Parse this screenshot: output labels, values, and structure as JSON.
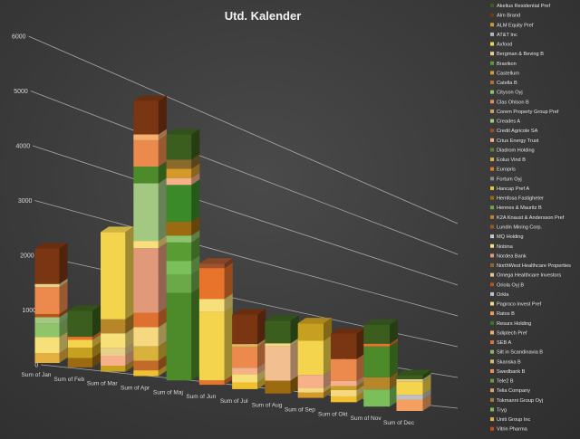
{
  "chart_data": {
    "type": "bar",
    "stacked": true,
    "three_d": true,
    "title": "Utd. Kalender",
    "categories": [
      "Sum of Jan",
      "Sum of Feb",
      "Sum of Mar",
      "Sum of Apr",
      "Sum of Maj",
      "Sum of Jun",
      "Sum of Jul",
      "Sum of Aug",
      "Sum of Sep",
      "Sum of Okt",
      "Sum of Nov",
      "Sum of Dec"
    ],
    "yticks": [
      "0",
      "1000",
      "2000",
      "3000",
      "4000",
      "5000",
      "6000"
    ],
    "ylim": [
      0,
      6000
    ],
    "grid": true,
    "legend_position": "right",
    "legend": [
      "Akelius Residential Pref",
      "Alm Brand",
      "ALM Equity Pref",
      "AT&T Inc",
      "Axfood",
      "Bergman & Beving B",
      "Bravikon",
      "Castellum",
      "Catella B",
      "Citycon Oyj",
      "Clas Ohlson B",
      "Corem Property Group Pref",
      "Creades A",
      "Credit Agricole SA",
      "Crius Energy Trust",
      "Diadrom Holding",
      "Eolus Vind B",
      "Europris",
      "Fortum Oyj",
      "Hancap Pref A",
      "Hemfosa Fastigheter",
      "Hennes & Mauritz B",
      "K2A Knaust & Andersson Pref",
      "Lundin Mining Corp.",
      "MQ Holding",
      "Nobina",
      "Nordea Bank",
      "NorthWest Healthcare Properties",
      "Omega Healthcare Investors",
      "Oriola Oyj B",
      "Orkla",
      "Pagroco Invest Pref",
      "Ratos B",
      "Resurs Holding",
      "Sdiptech Pref",
      "SEB A",
      "Silt in Scandinavia B",
      "Skanska B",
      "Swedbank B",
      "Tele2 B",
      "Telia Company",
      "Tokmanni Group Oyj",
      "Tryg",
      "Uniti Group Inc",
      "Vitrin Pharma"
    ],
    "series_colors": [
      "#3b5e1f",
      "#7a3612",
      "#c8a020",
      "#b5b5b5",
      "#f3d44c",
      "#e8cf8a",
      "#5a9c34",
      "#d49a2a",
      "#c26a2a",
      "#8fc46a",
      "#eb8a4c",
      "#c9a255",
      "#a2c882",
      "#a54a1c",
      "#f6b08a",
      "#4c8a2a",
      "#d8b23a",
      "#e8742c",
      "#8a8a8a",
      "#f0c030",
      "#9c6a10",
      "#6aa848",
      "#b8862a",
      "#a0522d",
      "#c8c8c8",
      "#f7e07a",
      "#e09a7a",
      "#8a6a2a",
      "#f2c090",
      "#b8541a",
      "#c0c0c0",
      "#f5d880",
      "#f0a040",
      "#2e7a2e",
      "#f5b070",
      "#e07030",
      "#8ab46a",
      "#d8c060",
      "#f09050",
      "#6a9a3a",
      "#e0a060",
      "#a08030",
      "#7abf5a",
      "#e6b040",
      "#c84a10"
    ],
    "stacks": [
      {
        "category": "Sum of Jan",
        "segments": [
          {
            "v": 180,
            "c": "#e6b040"
          },
          {
            "v": 300,
            "c": "#f7e07a"
          },
          {
            "v": 250,
            "c": "#8fc46a"
          },
          {
            "v": 120,
            "c": "#a2c882"
          },
          {
            "v": 60,
            "c": "#b8541a"
          },
          {
            "v": 500,
            "c": "#eb8a4c"
          },
          {
            "v": 60,
            "c": "#e8cf8a"
          },
          {
            "v": 660,
            "c": "#7a3612"
          }
        ]
      },
      {
        "category": "Sum of Feb",
        "segments": [
          {
            "v": 180,
            "c": "#9c6a10"
          },
          {
            "v": 200,
            "c": "#c8a020"
          },
          {
            "v": 150,
            "c": "#f3d44c"
          },
          {
            "v": 60,
            "c": "#e8742c"
          },
          {
            "v": 500,
            "c": "#3b5e1f"
          }
        ]
      },
      {
        "category": "Sum of Mar",
        "segments": [
          {
            "v": 120,
            "c": "#c8a020"
          },
          {
            "v": 200,
            "c": "#f6b08a"
          },
          {
            "v": 150,
            "c": "#e8cf8a"
          },
          {
            "v": 300,
            "c": "#f7e07a"
          },
          {
            "v": 280,
            "c": "#b8862a"
          },
          {
            "v": 1750,
            "c": "#f3d44c"
          }
        ]
      },
      {
        "category": "Sum of Apr",
        "segments": [
          {
            "v": 120,
            "c": "#f0c030"
          },
          {
            "v": 200,
            "c": "#c26a2a"
          },
          {
            "v": 300,
            "c": "#d8b23a"
          },
          {
            "v": 400,
            "c": "#f5d880"
          },
          {
            "v": 300,
            "c": "#e07030"
          },
          {
            "v": 1350,
            "c": "#e09a7a"
          },
          {
            "v": 150,
            "c": "#f7e07a"
          },
          {
            "v": 1200,
            "c": "#a2c882"
          },
          {
            "v": 350,
            "c": "#4c8a2a"
          },
          {
            "v": 550,
            "c": "#eb8a4c"
          },
          {
            "v": 120,
            "c": "#f5b070"
          },
          {
            "v": 700,
            "c": "#7a3612"
          }
        ]
      },
      {
        "category": "Sum of Maj",
        "segments": [
          {
            "v": 1900,
            "c": "#4c8a2a"
          },
          {
            "v": 400,
            "c": "#6aa848"
          },
          {
            "v": 300,
            "c": "#7abf5a"
          },
          {
            "v": 400,
            "c": "#5a9c34"
          },
          {
            "v": 150,
            "c": "#8fc46a"
          },
          {
            "v": 300,
            "c": "#9c6a10"
          },
          {
            "v": 800,
            "c": "#3b8a2a"
          },
          {
            "v": 150,
            "c": "#f6b08a"
          },
          {
            "v": 200,
            "c": "#d49a2a"
          },
          {
            "v": 200,
            "c": "#8a6a2a"
          },
          {
            "v": 550,
            "c": "#3b5e1f"
          }
        ]
      },
      {
        "category": "Sum of Jun",
        "segments": [
          {
            "v": 100,
            "c": "#e8742c"
          },
          {
            "v": 1550,
            "c": "#f3d44c"
          },
          {
            "v": 300,
            "c": "#f7e07a"
          },
          {
            "v": 700,
            "c": "#e8742c"
          },
          {
            "v": 100,
            "c": "#a0522d"
          }
        ]
      },
      {
        "category": "Sum of Jul",
        "segments": [
          {
            "v": 160,
            "c": "#f0c030"
          },
          {
            "v": 200,
            "c": "#f7e07a"
          },
          {
            "v": 150,
            "c": "#f6b08a"
          },
          {
            "v": 500,
            "c": "#eb8a4c"
          },
          {
            "v": 60,
            "c": "#d8c060"
          },
          {
            "v": 700,
            "c": "#7a3612"
          }
        ]
      },
      {
        "category": "Sum of Aug",
        "segments": [
          {
            "v": 320,
            "c": "#9c6a10"
          },
          {
            "v": 850,
            "c": "#f2c090"
          },
          {
            "v": 80,
            "c": "#f5d880"
          },
          {
            "v": 560,
            "c": "#3b5e1f"
          }
        ]
      },
      {
        "category": "Sum of Sep",
        "segments": [
          {
            "v": 140,
            "c": "#d49a2a"
          },
          {
            "v": 120,
            "c": "#f5d880"
          },
          {
            "v": 340,
            "c": "#f6b08a"
          },
          {
            "v": 900,
            "c": "#f3d44c"
          },
          {
            "v": 450,
            "c": "#c8a020"
          }
        ]
      },
      {
        "category": "Sum of Okt",
        "segments": [
          {
            "v": 160,
            "c": "#f0c030"
          },
          {
            "v": 180,
            "c": "#f5d880"
          },
          {
            "v": 100,
            "c": "#c8a020"
          },
          {
            "v": 150,
            "c": "#f6b08a"
          },
          {
            "v": 600,
            "c": "#eb8a4c"
          },
          {
            "v": 700,
            "c": "#7a3612"
          }
        ]
      },
      {
        "category": "Sum of Nov",
        "segments": [
          {
            "v": 500,
            "c": "#7abf5a"
          },
          {
            "v": 350,
            "c": "#b8862a"
          },
          {
            "v": 900,
            "c": "#4c8a2a"
          },
          {
            "v": 80,
            "c": "#e8742c"
          },
          {
            "v": 550,
            "c": "#3b5e1f"
          }
        ]
      },
      {
        "category": "Sum of Dec",
        "segments": [
          {
            "v": 350,
            "c": "#f5a060"
          },
          {
            "v": 150,
            "c": "#c0c0c0"
          },
          {
            "v": 400,
            "c": "#f3d44c"
          },
          {
            "v": 80,
            "c": "#e8cf8a"
          },
          {
            "v": 120,
            "c": "#3b5e1f"
          }
        ]
      }
    ]
  }
}
